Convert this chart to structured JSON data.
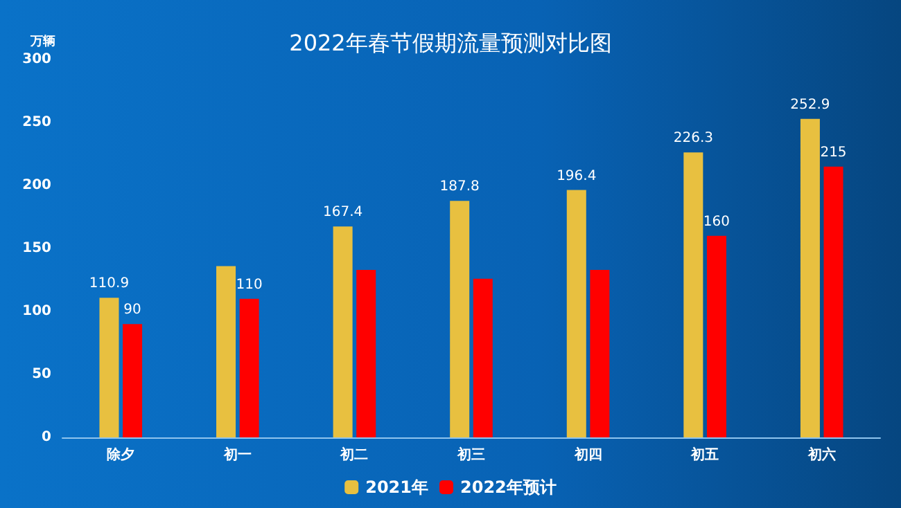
{
  "chart_data": {
    "type": "bar",
    "title": "2022年春节假期流量预测对比图",
    "ylabel": "万辆",
    "categories": [
      "除夕",
      "初一",
      "初二",
      "初三",
      "初四",
      "初五",
      "初六"
    ],
    "series": [
      {
        "name": "2021年",
        "color": "#e8c040",
        "values": [
          110.9,
          136,
          167.4,
          187.8,
          196.4,
          226.3,
          252.9
        ],
        "value_labels": [
          "110.9",
          null,
          "167.4",
          "187.8",
          "196.4",
          "226.3",
          "252.9"
        ]
      },
      {
        "name": "2022年预计",
        "color": "#ff0000",
        "values": [
          90,
          110,
          133,
          126,
          133,
          160,
          215
        ],
        "value_labels": [
          "90",
          "110",
          null,
          null,
          null,
          "160",
          "215"
        ]
      }
    ],
    "ylim": [
      0,
      300
    ],
    "yticks": [
      0,
      50,
      100,
      150,
      200,
      250,
      300
    ],
    "grid": false,
    "legend": "bottom"
  }
}
